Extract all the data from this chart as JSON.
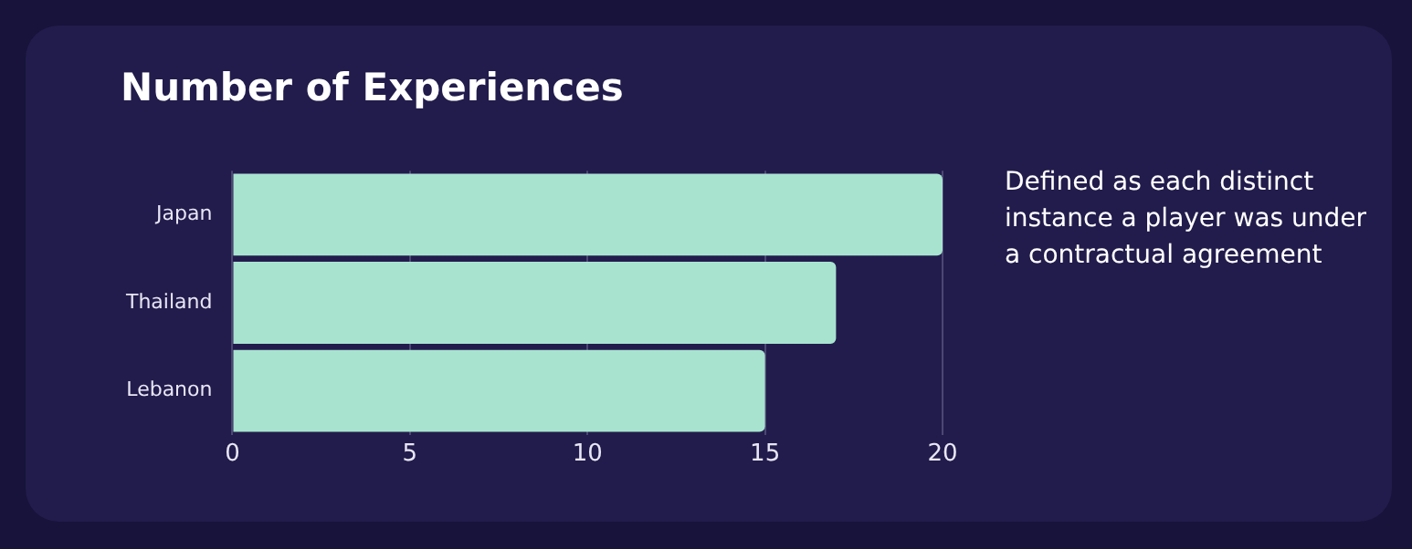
{
  "chart_data": {
    "type": "bar",
    "orientation": "horizontal",
    "title": "Number of Experiences",
    "categories": [
      "Japan",
      "Thailand",
      "Lebanon"
    ],
    "values": [
      20,
      17,
      15
    ],
    "color": "#a8e3d0",
    "xlim": [
      0,
      20
    ],
    "xticks": [
      0,
      5,
      10,
      15,
      20
    ],
    "grid": "x",
    "annotations": [
      "Defined as each distinct instance a player was under a contractual agreement"
    ]
  }
}
